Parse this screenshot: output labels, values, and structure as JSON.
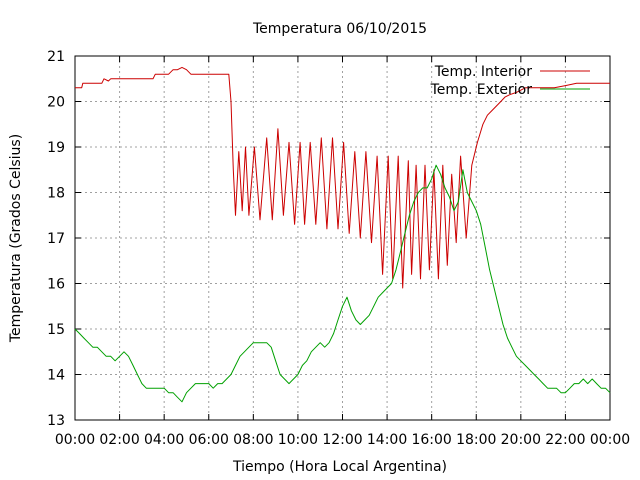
{
  "chart_data": {
    "type": "line",
    "title": "Temperatura 06/10/2015",
    "xlabel": "Tiempo (Hora Local Argentina)",
    "ylabel": "Temperatura (Grados Celsius)",
    "x_ticks": [
      "00:00",
      "02:00",
      "04:00",
      "06:00",
      "08:00",
      "10:00",
      "12:00",
      "14:00",
      "16:00",
      "18:00",
      "20:00",
      "22:00",
      "00:00"
    ],
    "xlim_hours": [
      0,
      24
    ],
    "ylim": [
      13,
      21
    ],
    "y_ticks": [
      13,
      14,
      15,
      16,
      17,
      18,
      19,
      20,
      21
    ],
    "grid": true,
    "legend_position": "top-right",
    "series": [
      {
        "name": "Temp. Interior",
        "color": "#cc0000",
        "x_hours": [
          0,
          0.3,
          0.35,
          1.2,
          1.3,
          1.5,
          1.6,
          3.5,
          3.6,
          4.2,
          4.4,
          4.6,
          4.8,
          5.0,
          5.2,
          6.9,
          7.0,
          7.1,
          7.2,
          7.35,
          7.5,
          7.65,
          7.8,
          8.05,
          8.3,
          8.6,
          8.85,
          9.1,
          9.35,
          9.6,
          9.85,
          10.1,
          10.3,
          10.55,
          10.8,
          11.05,
          11.3,
          11.55,
          11.8,
          12.05,
          12.3,
          12.55,
          12.8,
          13.05,
          13.3,
          13.55,
          13.8,
          14.05,
          14.25,
          14.5,
          14.7,
          14.95,
          15.1,
          15.3,
          15.5,
          15.7,
          15.9,
          16.1,
          16.3,
          16.5,
          16.7,
          16.9,
          17.1,
          17.3,
          17.55,
          17.8,
          18.05,
          18.3,
          18.5,
          18.7,
          18.9,
          19.1,
          19.3,
          19.5,
          19.8,
          20.2,
          20.6,
          21.0,
          21.5,
          22.0,
          22.5,
          23.0,
          23.5,
          24.0
        ],
        "y": [
          20.3,
          20.3,
          20.4,
          20.4,
          20.5,
          20.45,
          20.5,
          20.5,
          20.6,
          20.6,
          20.7,
          20.7,
          20.75,
          20.7,
          20.6,
          20.6,
          20.0,
          18.5,
          17.5,
          18.9,
          17.6,
          19.0,
          17.5,
          19.0,
          17.4,
          19.2,
          17.4,
          19.4,
          17.5,
          19.1,
          17.3,
          19.1,
          17.3,
          19.1,
          17.3,
          19.2,
          17.2,
          19.2,
          17.2,
          19.1,
          17.1,
          18.9,
          17.0,
          18.9,
          16.9,
          18.8,
          16.2,
          18.8,
          16.1,
          18.8,
          15.9,
          18.7,
          16.2,
          18.6,
          16.1,
          18.6,
          16.3,
          18.5,
          16.1,
          18.6,
          16.4,
          18.4,
          16.9,
          18.8,
          17.0,
          18.6,
          19.1,
          19.5,
          19.7,
          19.8,
          19.9,
          20.0,
          20.1,
          20.15,
          20.2,
          20.3,
          20.3,
          20.3,
          20.3,
          20.35,
          20.4,
          20.4,
          20.4,
          20.4
        ]
      },
      {
        "name": "Temp. Exterior",
        "color": "#00a000",
        "x_hours": [
          0,
          0.2,
          0.4,
          0.6,
          0.8,
          1.0,
          1.2,
          1.4,
          1.6,
          1.8,
          2.0,
          2.2,
          2.4,
          2.6,
          2.8,
          3.0,
          3.2,
          3.4,
          3.6,
          3.8,
          4.0,
          4.2,
          4.4,
          4.6,
          4.8,
          5.0,
          5.2,
          5.4,
          5.6,
          5.8,
          6.0,
          6.2,
          6.4,
          6.6,
          6.8,
          7.0,
          7.2,
          7.4,
          7.6,
          7.8,
          8.0,
          8.2,
          8.4,
          8.6,
          8.8,
          9.0,
          9.2,
          9.4,
          9.6,
          9.8,
          10.0,
          10.2,
          10.4,
          10.6,
          10.8,
          11.0,
          11.2,
          11.4,
          11.6,
          11.8,
          12.0,
          12.2,
          12.4,
          12.6,
          12.8,
          13.0,
          13.2,
          13.4,
          13.6,
          13.8,
          14.0,
          14.2,
          14.4,
          14.6,
          14.8,
          15.0,
          15.2,
          15.4,
          15.6,
          15.8,
          16.0,
          16.2,
          16.4,
          16.6,
          16.8,
          17.0,
          17.2,
          17.4,
          17.6,
          17.8,
          18.0,
          18.2,
          18.4,
          18.6,
          18.8,
          19.0,
          19.2,
          19.4,
          19.6,
          19.8,
          20.0,
          20.2,
          20.4,
          20.6,
          20.8,
          21.0,
          21.2,
          21.4,
          21.6,
          21.8,
          22.0,
          22.2,
          22.4,
          22.6,
          22.8,
          23.0,
          23.2,
          23.4,
          23.6,
          23.8,
          24.0
        ],
        "y": [
          15.0,
          14.9,
          14.8,
          14.7,
          14.6,
          14.6,
          14.5,
          14.4,
          14.4,
          14.3,
          14.4,
          14.5,
          14.4,
          14.2,
          14.0,
          13.8,
          13.7,
          13.7,
          13.7,
          13.7,
          13.7,
          13.6,
          13.6,
          13.5,
          13.4,
          13.6,
          13.7,
          13.8,
          13.8,
          13.8,
          13.8,
          13.7,
          13.8,
          13.8,
          13.9,
          14.0,
          14.2,
          14.4,
          14.5,
          14.6,
          14.7,
          14.7,
          14.7,
          14.7,
          14.6,
          14.3,
          14.0,
          13.9,
          13.8,
          13.9,
          14.0,
          14.2,
          14.3,
          14.5,
          14.6,
          14.7,
          14.6,
          14.7,
          14.9,
          15.2,
          15.5,
          15.7,
          15.4,
          15.2,
          15.1,
          15.2,
          15.3,
          15.5,
          15.7,
          15.8,
          15.9,
          16.0,
          16.3,
          16.7,
          17.1,
          17.5,
          17.8,
          18.0,
          18.1,
          18.1,
          18.3,
          18.6,
          18.4,
          18.1,
          17.9,
          17.6,
          17.8,
          18.5,
          18.0,
          17.8,
          17.6,
          17.3,
          16.8,
          16.3,
          15.9,
          15.5,
          15.1,
          14.8,
          14.6,
          14.4,
          14.3,
          14.2,
          14.1,
          14.0,
          13.9,
          13.8,
          13.7,
          13.7,
          13.7,
          13.6,
          13.6,
          13.7,
          13.8,
          13.8,
          13.9,
          13.8,
          13.9,
          13.8,
          13.7,
          13.7,
          13.6
        ]
      }
    ]
  }
}
